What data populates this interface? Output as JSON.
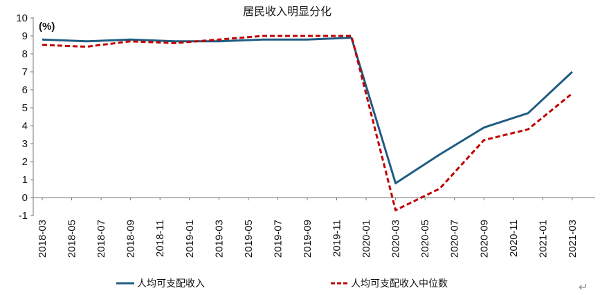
{
  "chart_data": {
    "type": "line",
    "title": "居民收入明显分化",
    "unit_label": "(%)",
    "ylim": [
      -1,
      10
    ],
    "y_ticks": [
      "-1",
      "0",
      "1",
      "2",
      "3",
      "4",
      "5",
      "6",
      "7",
      "8",
      "9",
      "10"
    ],
    "x_tick_labels": [
      "2018-03",
      "2018-05",
      "2018-07",
      "2018-09",
      "2018-11",
      "2019-01",
      "2019-03",
      "2019-05",
      "2019-07",
      "2019-09",
      "2019-11",
      "2020-01",
      "2020-03",
      "2020-05",
      "2020-07",
      "2020-09",
      "2020-11",
      "2021-01",
      "2021-03"
    ],
    "series": [
      {
        "name": "人均可支配收入",
        "color": "#1f5c82",
        "dash": "solid",
        "points": [
          [
            "2018-03",
            8.8
          ],
          [
            "2018-06",
            8.7
          ],
          [
            "2018-09",
            8.8
          ],
          [
            "2018-12",
            8.7
          ],
          [
            "2019-03",
            8.7
          ],
          [
            "2019-06",
            8.8
          ],
          [
            "2019-09",
            8.8
          ],
          [
            "2019-12",
            8.9
          ],
          [
            "2020-03",
            0.8
          ],
          [
            "2020-06",
            2.4
          ],
          [
            "2020-09",
            3.9
          ],
          [
            "2020-12",
            4.7
          ],
          [
            "2021-03",
            7.0
          ]
        ]
      },
      {
        "name": "人均可支配收入中位数",
        "color": "#c00000",
        "dash": "dashed",
        "points": [
          [
            "2018-03",
            8.5
          ],
          [
            "2018-06",
            8.4
          ],
          [
            "2018-09",
            8.7
          ],
          [
            "2018-12",
            8.6
          ],
          [
            "2019-03",
            8.8
          ],
          [
            "2019-06",
            9.0
          ],
          [
            "2019-09",
            9.0
          ],
          [
            "2019-12",
            9.0
          ],
          [
            "2020-03",
            -0.7
          ],
          [
            "2020-06",
            0.5
          ],
          [
            "2020-09",
            3.2
          ],
          [
            "2020-12",
            3.8
          ],
          [
            "2021-03",
            5.8
          ]
        ]
      }
    ],
    "legend": "bottom",
    "grid": false
  },
  "icons": {
    "return_mark": "↵"
  }
}
